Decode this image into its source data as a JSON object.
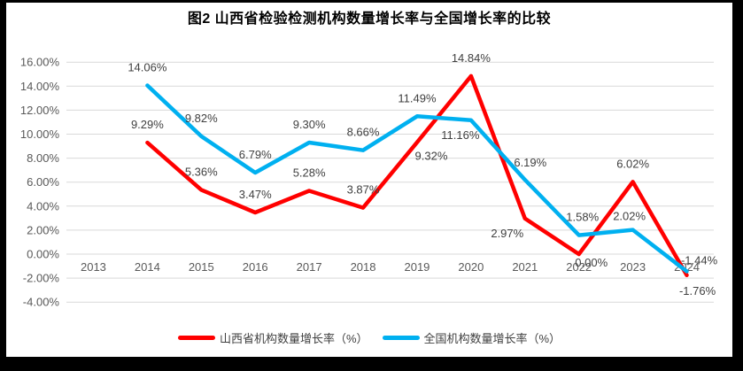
{
  "title": "图2 山西省检验检测机构数量增长率与全国增长率的比较",
  "colors": {
    "shanxi": "#FF0000",
    "national": "#00B0F0",
    "gridline": "#D9D9D9",
    "axis_text": "#595959",
    "label_text": "#404040",
    "frame": "#000000",
    "background": "#FFFFFF"
  },
  "chart_data": {
    "type": "line",
    "title": "图2 山西省检验检测机构数量增长率与全国增长率的比较",
    "categories": [
      2013,
      2014,
      2015,
      2016,
      2017,
      2018,
      2019,
      2020,
      2021,
      2022,
      2023,
      2024
    ],
    "series": [
      {
        "name": "山西省机构数量增长率（%）",
        "color_key": "shanxi",
        "values": [
          null,
          9.29,
          5.36,
          3.47,
          5.28,
          3.87,
          9.32,
          14.84,
          2.97,
          0.0,
          6.02,
          -1.76
        ]
      },
      {
        "name": "全国机构数量增长率（%）",
        "color_key": "national",
        "values": [
          null,
          14.06,
          9.82,
          6.79,
          9.3,
          8.66,
          11.49,
          11.16,
          6.19,
          1.58,
          2.02,
          -1.44
        ]
      }
    ],
    "ylim": [
      -4,
      16
    ],
    "ytick_step": 2,
    "ytick_labels": [
      "16.00%",
      "14.00%",
      "12.00%",
      "10.00%",
      "8.00%",
      "6.00%",
      "4.00%",
      "2.00%",
      "0.00%",
      "-2.00%",
      "-4.00%"
    ],
    "grid": true,
    "data_labels": true,
    "legend_position": "bottom"
  }
}
